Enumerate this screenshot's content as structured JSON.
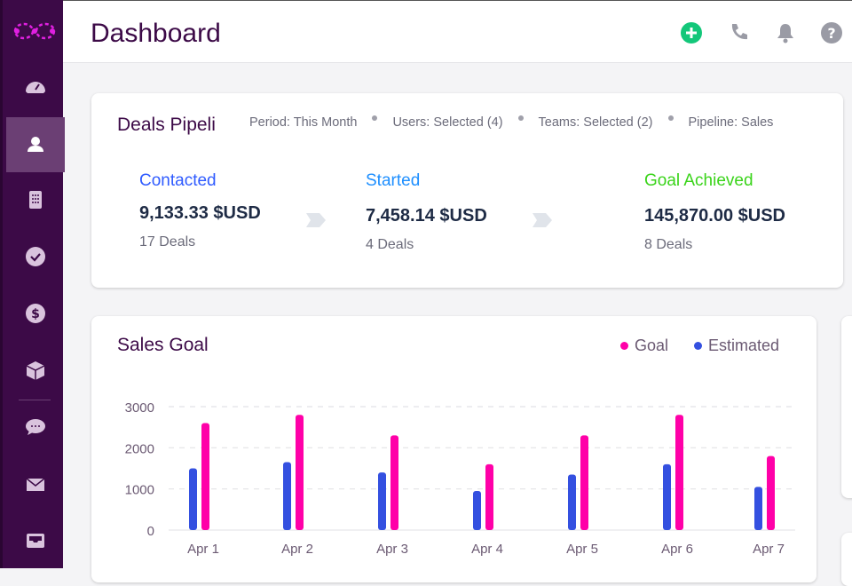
{
  "header": {
    "title": "Dashboard",
    "icons": [
      "add-icon",
      "phone-icon",
      "bell-icon",
      "help-icon"
    ]
  },
  "sidebar": {
    "items": [
      "dashboard-icon",
      "contacts-icon",
      "calculator-icon",
      "tasks-icon",
      "deals-icon",
      "products-icon",
      "chat-icon",
      "mail-icon",
      "inbox-icon"
    ],
    "active": "contacts-icon"
  },
  "pipeline": {
    "title": "Deals Pipeli",
    "filters": [
      "Period: This Month",
      "Users: Selected (4)",
      "Teams: Selected (2)",
      "Pipeline: Sales"
    ],
    "stages": [
      {
        "label": "Contacted",
        "amount": "9,133.33 $USD",
        "deals": "17 Deals",
        "color": "#2f5bff"
      },
      {
        "label": "Started",
        "amount": "7,458.14 $USD",
        "deals": "4 Deals",
        "color": "#1e8fff"
      },
      {
        "label": "Goal Achieved",
        "amount": "145,870.00 $USD",
        "deals": "8 Deals",
        "color": "#3ad41a"
      }
    ]
  },
  "sales": {
    "title": "Sales Goal"
  },
  "chart_data": {
    "type": "bar",
    "title": "Sales Goal",
    "categories": [
      "Apr 1",
      "Apr 2",
      "Apr 3",
      "Apr 4",
      "Apr 5",
      "Apr 6",
      "Apr 7"
    ],
    "series": [
      {
        "name": "Goal",
        "color": "#ff00a8",
        "values": [
          2600,
          2800,
          2300,
          1600,
          2300,
          2800,
          1800
        ]
      },
      {
        "name": "Estimated",
        "color": "#3450e0",
        "values": [
          1500,
          1650,
          1400,
          950,
          1350,
          1600,
          1050
        ]
      }
    ],
    "yticks": [
      "3000",
      "2000",
      "1000",
      "0"
    ],
    "ylim": [
      0,
      3000
    ],
    "grid": true,
    "legend": "top-right"
  }
}
